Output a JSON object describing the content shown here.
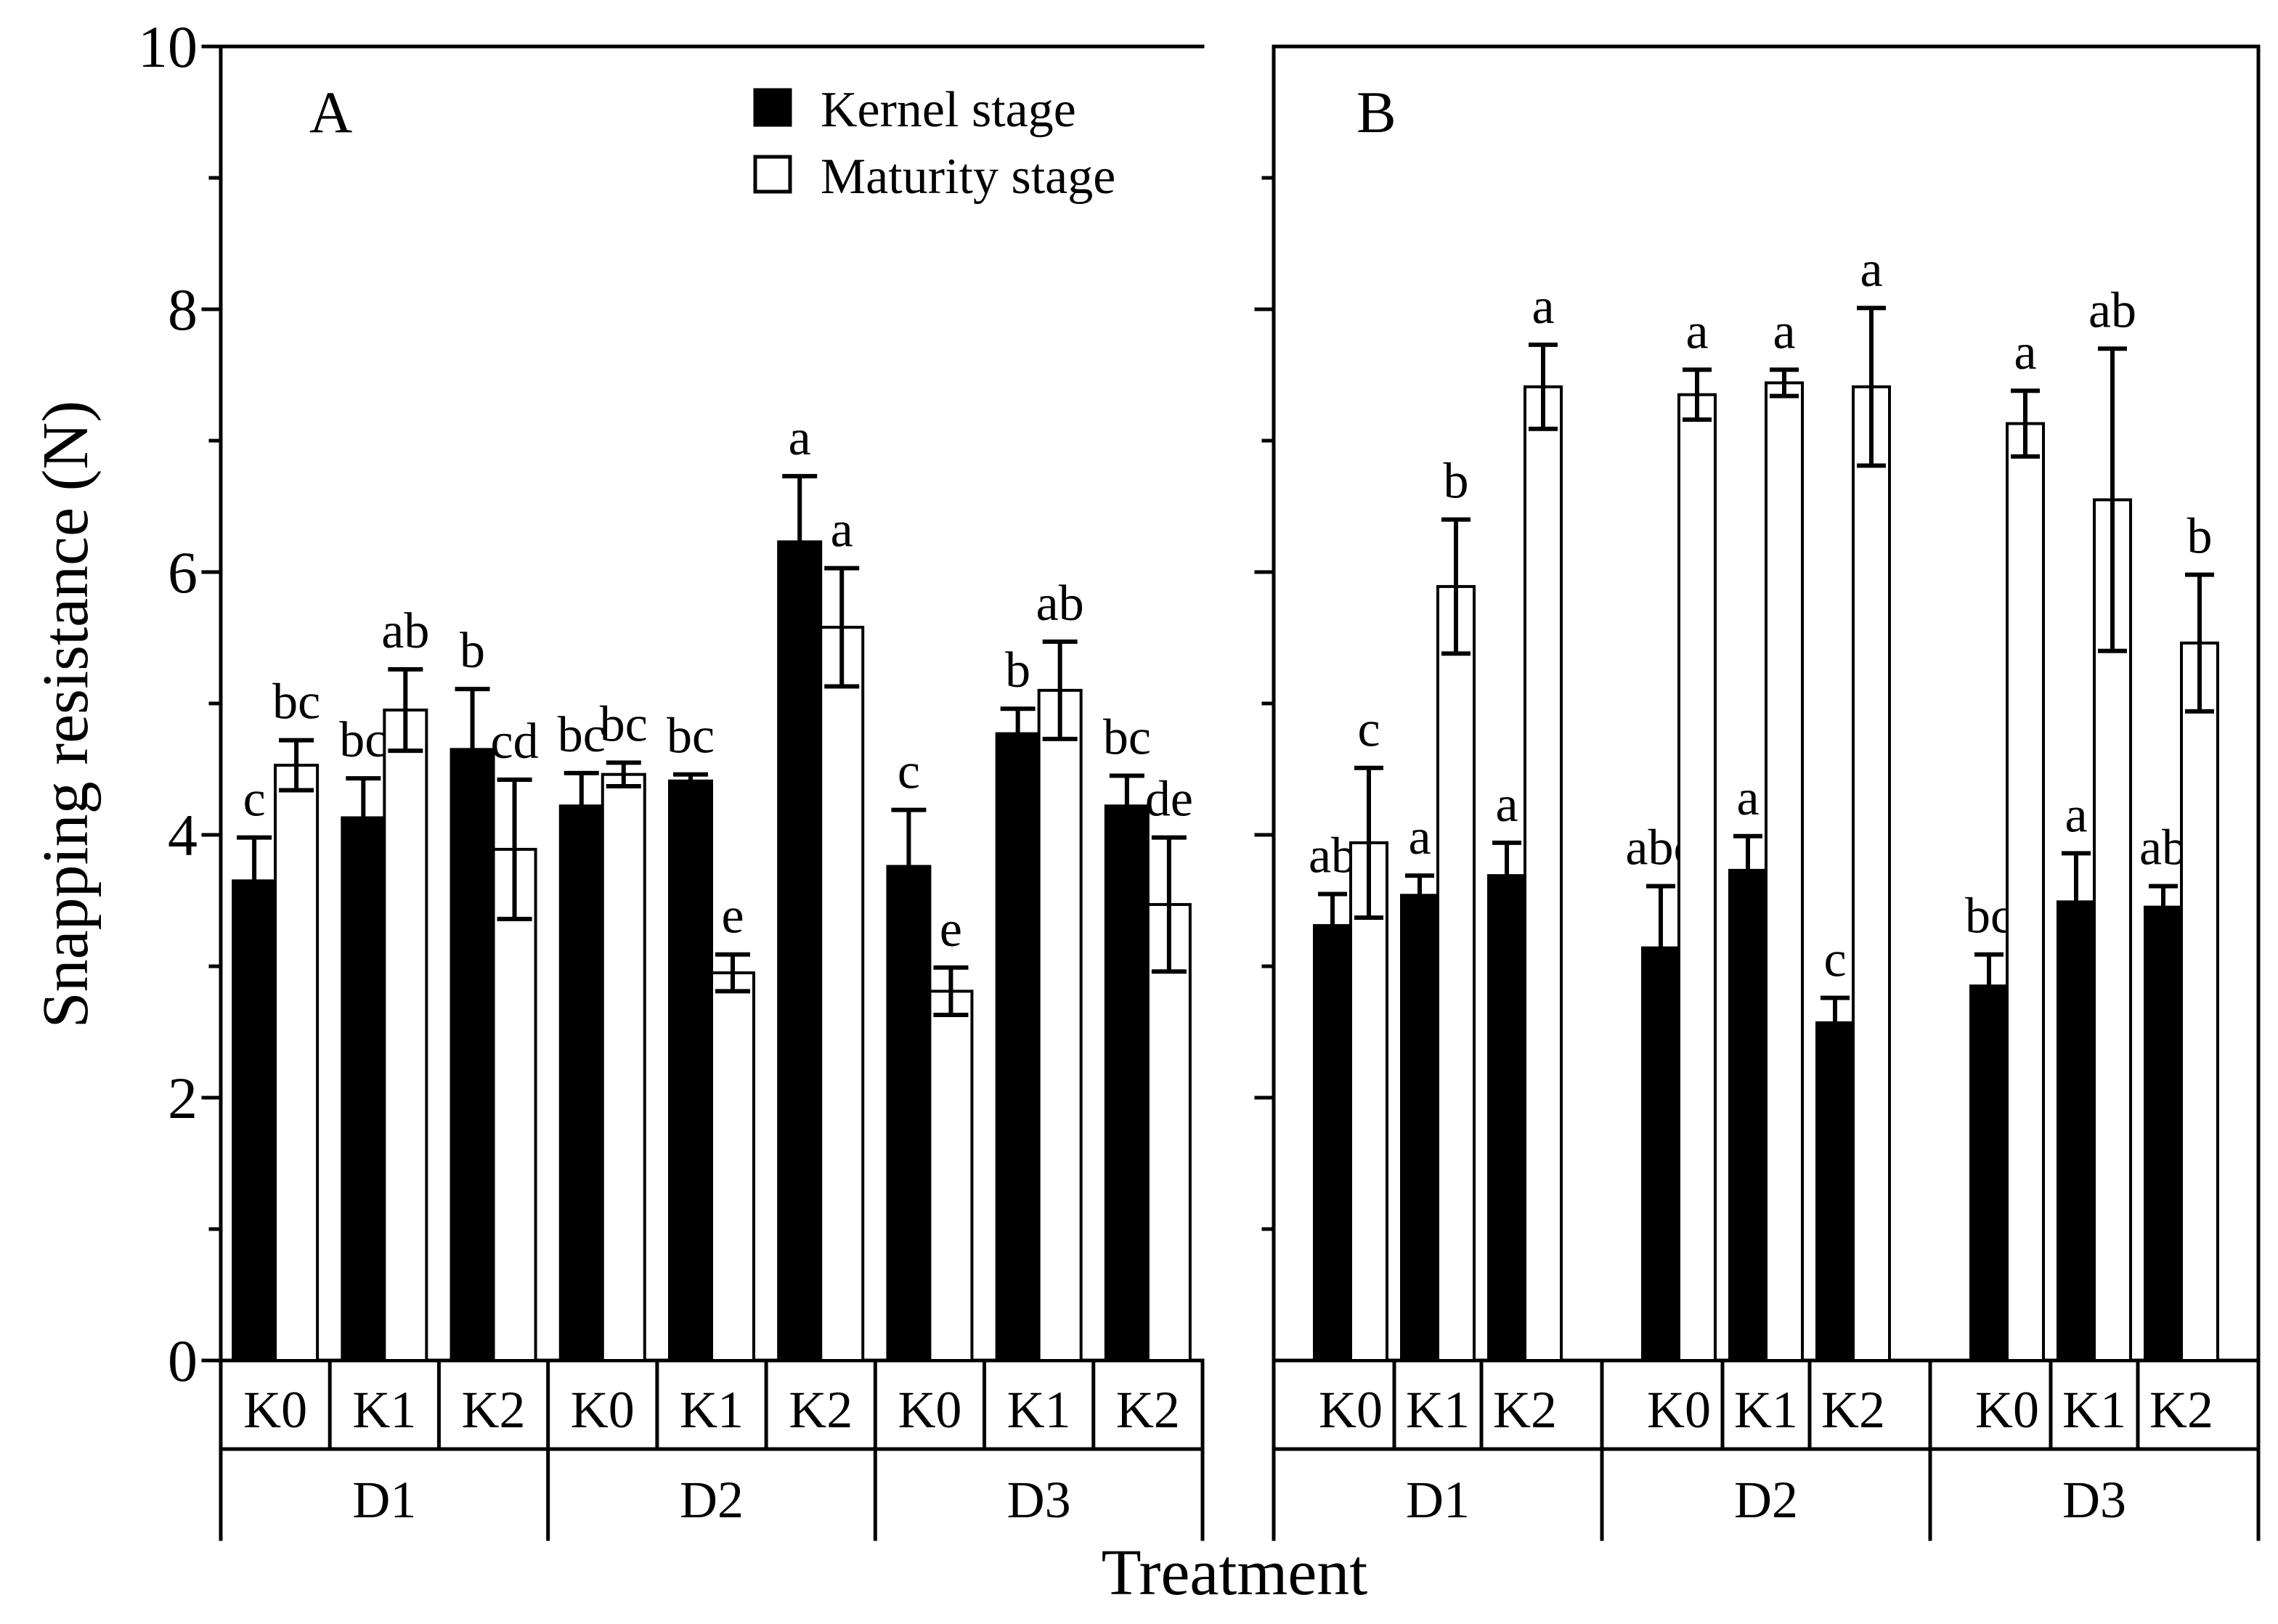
{
  "chart_data": {
    "type": "bar",
    "xlabel": "Treatment",
    "ylabel": "Snapping resistance (N)",
    "ylim": [
      0,
      10
    ],
    "yticks": [
      0,
      2,
      4,
      6,
      8,
      10
    ],
    "groups": [
      "D1",
      "D2",
      "D3"
    ],
    "subgroups": [
      "K0",
      "K1",
      "K2"
    ],
    "legend": [
      {
        "name": "Kernel stage",
        "color": "#000000"
      },
      {
        "name": "Maturity stage",
        "color": "#ffffff"
      }
    ],
    "panels": [
      {
        "label": "A",
        "series": [
          {
            "values": [
              3.65,
              4.13,
              4.65,
              4.22,
              4.41,
              6.23,
              3.76,
              4.77,
              4.22
            ],
            "errors": [
              0.33,
              0.3,
              0.46,
              0.25,
              0.05,
              0.5,
              0.43,
              0.19,
              0.23
            ],
            "letters": [
              "c",
              "bc",
              "b",
              "bc",
              "bc",
              "a",
              "c",
              "b",
              "bc"
            ]
          },
          {
            "values": [
              4.53,
              4.95,
              3.89,
              4.46,
              2.95,
              5.58,
              2.81,
              5.1,
              3.47
            ],
            "errors": [
              0.19,
              0.31,
              0.53,
              0.09,
              0.14,
              0.45,
              0.18,
              0.37,
              0.51
            ],
            "letters": [
              "bc",
              "ab",
              "cd",
              "bc",
              "e",
              "a",
              "e",
              "ab",
              "de"
            ]
          }
        ]
      },
      {
        "label": "B",
        "series": [
          {
            "values": [
              3.31,
              3.54,
              3.69,
              3.14,
              3.73,
              2.57,
              2.85,
              3.49,
              3.45
            ],
            "errors": [
              0.24,
              0.15,
              0.25,
              0.47,
              0.26,
              0.19,
              0.24,
              0.37,
              0.16
            ],
            "letters": [
              "ab",
              "a",
              "a",
              "abc",
              "a",
              "c",
              "bc",
              "a",
              "ab"
            ]
          },
          {
            "values": [
              3.94,
              5.89,
              7.41,
              7.35,
              7.44,
              7.41,
              7.13,
              6.55,
              5.46
            ],
            "errors": [
              0.57,
              0.51,
              0.32,
              0.19,
              0.1,
              0.6,
              0.25,
              1.15,
              0.52
            ],
            "letters": [
              "c",
              "b",
              "a",
              "a",
              "a",
              "a",
              "a",
              "ab",
              "b"
            ]
          }
        ]
      }
    ]
  }
}
